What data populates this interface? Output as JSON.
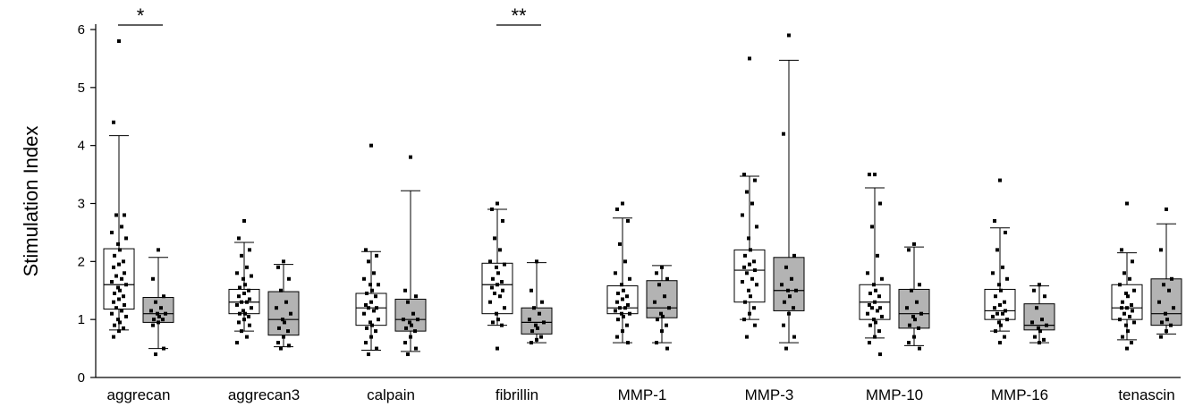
{
  "chart_data": {
    "type": "box",
    "ylabel": "Stimulation Index",
    "xlabel": "",
    "title": "",
    "ylim": [
      0,
      6
    ],
    "yticks": [
      0,
      1,
      2,
      3,
      4,
      5,
      6
    ],
    "grid": false,
    "legend": "none",
    "colors": {
      "group_a": "#ffffff",
      "group_b": "#b3b3b3",
      "stroke": "#000000"
    },
    "categories": [
      "aggrecan",
      "aggrecan3",
      "calpain",
      "fibrillin",
      "MMP-1",
      "MMP-3",
      "MMP-10",
      "MMP-16",
      "tenascin"
    ],
    "groups": [
      {
        "category": "aggrecan",
        "a": {
          "whisker_low": 0.82,
          "q1": 1.18,
          "median": 1.6,
          "q3": 2.22,
          "whisker_high": 4.17,
          "points": [
            5.8,
            4.4,
            2.8,
            2.8,
            2.6,
            2.5,
            2.4,
            2.3,
            2.2,
            2.1,
            2.0,
            1.95,
            1.9,
            1.8,
            1.75,
            1.7,
            1.65,
            1.6,
            1.55,
            1.5,
            1.45,
            1.4,
            1.35,
            1.3,
            1.25,
            1.2,
            1.15,
            1.1,
            1.05,
            1.0,
            0.95,
            0.9,
            0.85,
            0.8,
            0.7
          ]
        },
        "b": {
          "whisker_low": 0.5,
          "q1": 0.95,
          "median": 1.1,
          "q3": 1.38,
          "whisker_high": 2.07,
          "points": [
            2.2,
            1.7,
            1.4,
            1.3,
            1.2,
            1.15,
            1.1,
            1.1,
            1.05,
            1.0,
            1.0,
            0.95,
            0.9,
            0.5,
            0.4
          ]
        }
      },
      {
        "category": "aggrecan3",
        "a": {
          "whisker_low": 0.8,
          "q1": 1.1,
          "median": 1.3,
          "q3": 1.52,
          "whisker_high": 2.33,
          "points": [
            2.7,
            2.4,
            2.2,
            2.1,
            1.9,
            1.8,
            1.75,
            1.7,
            1.6,
            1.55,
            1.5,
            1.45,
            1.4,
            1.35,
            1.3,
            1.3,
            1.25,
            1.2,
            1.15,
            1.1,
            1.1,
            1.05,
            1.0,
            0.95,
            0.9,
            0.8,
            0.7,
            0.6
          ]
        },
        "b": {
          "whisker_low": 0.53,
          "q1": 0.73,
          "median": 1.0,
          "q3": 1.48,
          "whisker_high": 1.95,
          "points": [
            2.0,
            1.9,
            1.7,
            1.5,
            1.3,
            1.2,
            1.1,
            1.0,
            0.95,
            0.85,
            0.8,
            0.7,
            0.6,
            0.55,
            0.5
          ]
        }
      },
      {
        "category": "calpain",
        "a": {
          "whisker_low": 0.47,
          "q1": 0.9,
          "median": 1.2,
          "q3": 1.45,
          "whisker_high": 2.17,
          "points": [
            4.0,
            2.2,
            2.1,
            2.0,
            1.8,
            1.7,
            1.6,
            1.6,
            1.5,
            1.45,
            1.4,
            1.3,
            1.25,
            1.2,
            1.2,
            1.15,
            1.1,
            1.0,
            0.95,
            0.9,
            0.85,
            0.8,
            0.7,
            0.6,
            0.5,
            0.4
          ]
        },
        "b": {
          "whisker_low": 0.45,
          "q1": 0.8,
          "median": 1.0,
          "q3": 1.35,
          "whisker_high": 3.22,
          "points": [
            3.8,
            1.5,
            1.4,
            1.3,
            1.1,
            1.0,
            1.0,
            0.95,
            0.9,
            0.85,
            0.8,
            0.7,
            0.6,
            0.5,
            0.4
          ]
        }
      },
      {
        "category": "fibrillin",
        "a": {
          "whisker_low": 0.9,
          "q1": 1.1,
          "median": 1.6,
          "q3": 1.97,
          "whisker_high": 2.9,
          "points": [
            3.0,
            2.9,
            2.7,
            2.4,
            2.2,
            2.0,
            1.95,
            1.9,
            1.8,
            1.7,
            1.65,
            1.6,
            1.55,
            1.5,
            1.45,
            1.4,
            1.3,
            1.2,
            1.1,
            1.0,
            0.95,
            0.9,
            0.5
          ]
        },
        "b": {
          "whisker_low": 0.6,
          "q1": 0.75,
          "median": 0.95,
          "q3": 1.2,
          "whisker_high": 1.98,
          "points": [
            2.0,
            1.5,
            1.3,
            1.2,
            1.1,
            1.0,
            0.95,
            0.9,
            0.85,
            0.8,
            0.7,
            0.65,
            0.6
          ]
        }
      },
      {
        "category": "MMP-1",
        "a": {
          "whisker_low": 0.6,
          "q1": 1.1,
          "median": 1.2,
          "q3": 1.58,
          "whisker_high": 2.75,
          "points": [
            3.0,
            2.9,
            2.7,
            2.3,
            2.0,
            1.8,
            1.7,
            1.6,
            1.5,
            1.45,
            1.4,
            1.35,
            1.3,
            1.25,
            1.2,
            1.2,
            1.15,
            1.1,
            1.1,
            1.05,
            1.0,
            0.9,
            0.8,
            0.7,
            0.6
          ]
        },
        "b": {
          "whisker_low": 0.6,
          "q1": 1.03,
          "median": 1.2,
          "q3": 1.67,
          "whisker_high": 1.93,
          "points": [
            1.9,
            1.8,
            1.7,
            1.6,
            1.4,
            1.3,
            1.2,
            1.1,
            1.05,
            1.0,
            0.9,
            0.8,
            0.6,
            0.5
          ]
        }
      },
      {
        "category": "MMP-3",
        "a": {
          "whisker_low": 1.0,
          "q1": 1.3,
          "median": 1.85,
          "q3": 2.2,
          "whisker_high": 3.47,
          "points": [
            5.5,
            3.5,
            3.4,
            3.2,
            3.0,
            2.8,
            2.6,
            2.4,
            2.2,
            2.1,
            2.0,
            1.95,
            1.9,
            1.85,
            1.8,
            1.7,
            1.65,
            1.6,
            1.5,
            1.4,
            1.3,
            1.2,
            1.1,
            1.0,
            0.9,
            0.7
          ]
        },
        "b": {
          "whisker_low": 0.6,
          "q1": 1.15,
          "median": 1.5,
          "q3": 2.07,
          "whisker_high": 5.47,
          "points": [
            5.9,
            4.2,
            2.1,
            1.9,
            1.7,
            1.6,
            1.5,
            1.5,
            1.4,
            1.3,
            1.2,
            1.1,
            0.9,
            0.7,
            0.5
          ]
        }
      },
      {
        "category": "MMP-10",
        "a": {
          "whisker_low": 0.68,
          "q1": 1.0,
          "median": 1.3,
          "q3": 1.6,
          "whisker_high": 3.27,
          "points": [
            3.5,
            3.5,
            3.0,
            2.6,
            2.1,
            1.8,
            1.7,
            1.6,
            1.5,
            1.45,
            1.4,
            1.3,
            1.25,
            1.2,
            1.2,
            1.15,
            1.1,
            1.05,
            1.0,
            0.95,
            0.9,
            0.8,
            0.7,
            0.6,
            0.4
          ]
        },
        "b": {
          "whisker_low": 0.55,
          "q1": 0.85,
          "median": 1.1,
          "q3": 1.52,
          "whisker_high": 2.25,
          "points": [
            2.3,
            2.2,
            1.6,
            1.5,
            1.3,
            1.2,
            1.1,
            1.05,
            1.0,
            0.9,
            0.85,
            0.7,
            0.6,
            0.5
          ]
        }
      },
      {
        "category": "MMP-16",
        "a": {
          "whisker_low": 0.8,
          "q1": 1.0,
          "median": 1.15,
          "q3": 1.52,
          "whisker_high": 2.58,
          "points": [
            3.4,
            2.7,
            2.5,
            2.2,
            1.9,
            1.8,
            1.7,
            1.6,
            1.5,
            1.4,
            1.3,
            1.25,
            1.2,
            1.15,
            1.1,
            1.1,
            1.05,
            1.0,
            0.95,
            0.9,
            0.8,
            0.7,
            0.6
          ]
        },
        "b": {
          "whisker_low": 0.6,
          "q1": 0.82,
          "median": 0.9,
          "q3": 1.27,
          "whisker_high": 1.58,
          "points": [
            1.6,
            1.5,
            1.4,
            1.2,
            1.0,
            0.95,
            0.9,
            0.85,
            0.8,
            0.7,
            0.65,
            0.6
          ]
        }
      },
      {
        "category": "tenascin",
        "a": {
          "whisker_low": 0.65,
          "q1": 1.0,
          "median": 1.2,
          "q3": 1.6,
          "whisker_high": 2.15,
          "points": [
            3.0,
            2.2,
            2.0,
            1.8,
            1.7,
            1.6,
            1.5,
            1.45,
            1.4,
            1.3,
            1.25,
            1.2,
            1.2,
            1.15,
            1.1,
            1.05,
            1.0,
            0.95,
            0.9,
            0.8,
            0.7,
            0.6,
            0.5
          ]
        },
        "b": {
          "whisker_low": 0.75,
          "q1": 0.9,
          "median": 1.1,
          "q3": 1.7,
          "whisker_high": 2.65,
          "points": [
            2.9,
            2.2,
            1.7,
            1.6,
            1.5,
            1.3,
            1.2,
            1.1,
            1.0,
            0.95,
            0.9,
            0.8,
            0.7
          ]
        }
      }
    ],
    "annotations": [
      {
        "label": "*",
        "category": "aggrecan"
      },
      {
        "label": "**",
        "category": "fibrillin"
      }
    ]
  }
}
